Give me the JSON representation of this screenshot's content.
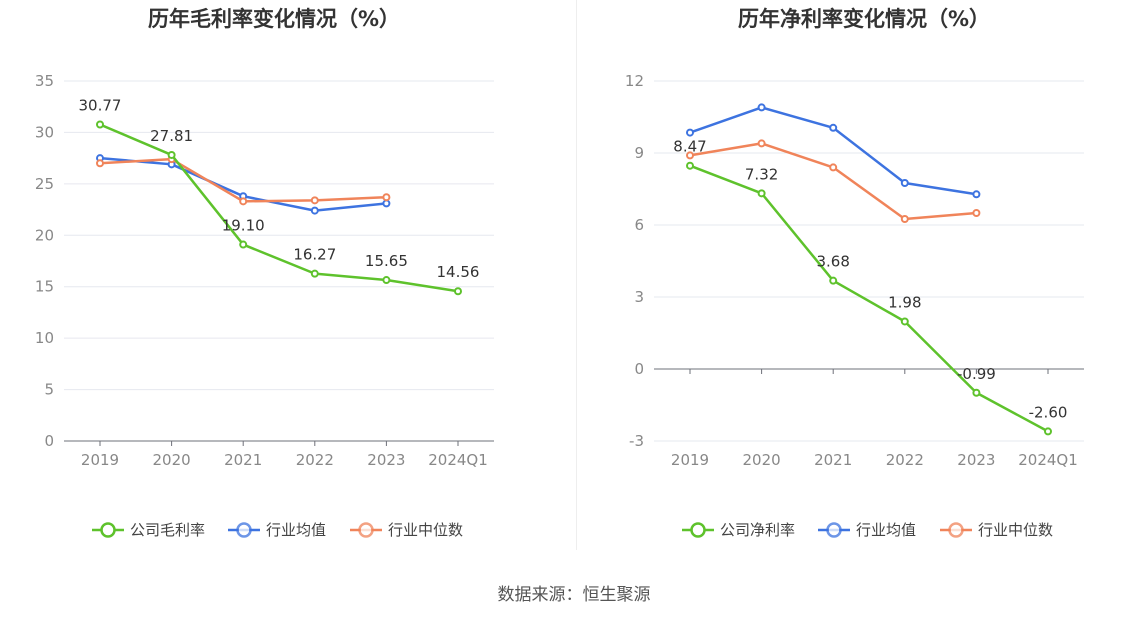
{
  "source": "数据来源：恒生聚源",
  "chart_data": [
    {
      "type": "line",
      "title": "历年毛利率变化情况（%）",
      "categories": [
        "2019",
        "2020",
        "2021",
        "2022",
        "2023",
        "2024Q1"
      ],
      "ylim": [
        0,
        35
      ],
      "yticks": [
        0,
        5,
        10,
        15,
        20,
        25,
        30,
        35
      ],
      "ytick_labels": [
        "0",
        "5",
        "10",
        "15",
        "20",
        "25",
        "30",
        "35"
      ],
      "legend_position": "bottom-center",
      "series": [
        {
          "name": "公司毛利率",
          "color": "#5ec22c",
          "values": [
            30.77,
            27.81,
            19.1,
            16.27,
            15.65,
            14.56
          ],
          "labels": [
            "30.77",
            "27.81",
            "19.10",
            "16.27",
            "15.65",
            "14.56"
          ]
        },
        {
          "name": "行业均值",
          "color": "#3d73e0",
          "values": [
            27.5,
            26.9,
            23.8,
            22.4,
            23.1,
            null
          ]
        },
        {
          "name": "行业中位数",
          "color": "#f0845a",
          "values": [
            27.0,
            27.4,
            23.3,
            23.4,
            23.7,
            null
          ]
        }
      ]
    },
    {
      "type": "line",
      "title": "历年净利率变化情况（%）",
      "categories": [
        "2019",
        "2020",
        "2021",
        "2022",
        "2023",
        "2024Q1"
      ],
      "ylim": [
        -3,
        12
      ],
      "yticks": [
        -3,
        0,
        3,
        6,
        9,
        12
      ],
      "ytick_labels": [
        "-3",
        "0",
        "3",
        "6",
        "9",
        "12"
      ],
      "legend_position": "bottom-center",
      "series": [
        {
          "name": "公司净利率",
          "color": "#5ec22c",
          "values": [
            8.47,
            7.32,
            3.68,
            1.98,
            -0.99,
            -2.6
          ],
          "labels": [
            "8.47",
            "7.32",
            "3.68",
            "1.98",
            "-0.99",
            "-2.60"
          ]
        },
        {
          "name": "行业均值",
          "color": "#3d73e0",
          "values": [
            9.85,
            10.9,
            10.05,
            7.75,
            7.28,
            null
          ]
        },
        {
          "name": "行业中位数",
          "color": "#f0845a",
          "values": [
            8.9,
            9.4,
            8.4,
            6.25,
            6.5,
            null
          ]
        }
      ]
    }
  ]
}
